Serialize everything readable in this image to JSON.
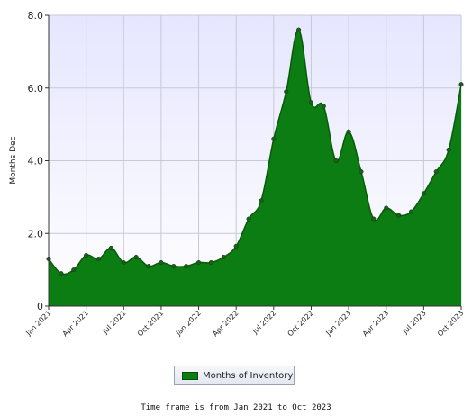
{
  "chart_data": {
    "type": "area",
    "ylabel": "Months Dec",
    "ylim": [
      0,
      8
    ],
    "y_ticks": [
      "0",
      "2.0",
      "4.0",
      "6.0",
      "8.0"
    ],
    "y_tick_values": [
      0,
      2,
      4,
      6,
      8
    ],
    "x_ticks": [
      "Jan 2021",
      "Apr 2021",
      "Jul 2021",
      "Oct 2021",
      "Jan 2022",
      "Apr 2022",
      "Jul 2022",
      "Oct 2022",
      "Jan 2023",
      "Apr 2023",
      "Jul 2023",
      "Oct 2023"
    ],
    "grid": true,
    "legend_position": "bottom",
    "series": [
      {
        "name": "Months of Inventory",
        "color": "#0b7d12",
        "x": [
          "2021-01",
          "2021-02",
          "2021-03",
          "2021-04",
          "2021-05",
          "2021-06",
          "2021-07",
          "2021-08",
          "2021-09",
          "2021-10",
          "2021-11",
          "2021-12",
          "2022-01",
          "2022-02",
          "2022-03",
          "2022-04",
          "2022-05",
          "2022-06",
          "2022-07",
          "2022-08",
          "2022-09",
          "2022-10",
          "2022-11",
          "2022-12",
          "2023-01",
          "2023-02",
          "2023-03",
          "2023-04",
          "2023-05",
          "2023-06",
          "2023-07",
          "2023-08",
          "2023-09",
          "2023-10"
        ],
        "values": [
          1.3,
          0.9,
          1.0,
          1.4,
          1.3,
          1.6,
          1.2,
          1.35,
          1.1,
          1.2,
          1.1,
          1.1,
          1.2,
          1.2,
          1.35,
          1.65,
          2.4,
          2.9,
          4.6,
          5.9,
          7.6,
          5.6,
          5.5,
          4.0,
          4.8,
          3.7,
          2.4,
          2.7,
          2.5,
          2.6,
          3.1,
          3.7,
          4.3,
          6.1
        ]
      }
    ]
  },
  "legend": {
    "label": "Months of Inventory"
  },
  "footer": {
    "text": "Time frame is from Jan 2021 to Oct 2023"
  },
  "colors": {
    "plot_background_top": "#e8e8ff",
    "plot_background_bottom": "#ffffff",
    "area_fill": "#0b7d12",
    "area_line": "#0a5a0a",
    "grid": "#c8c8d8"
  }
}
